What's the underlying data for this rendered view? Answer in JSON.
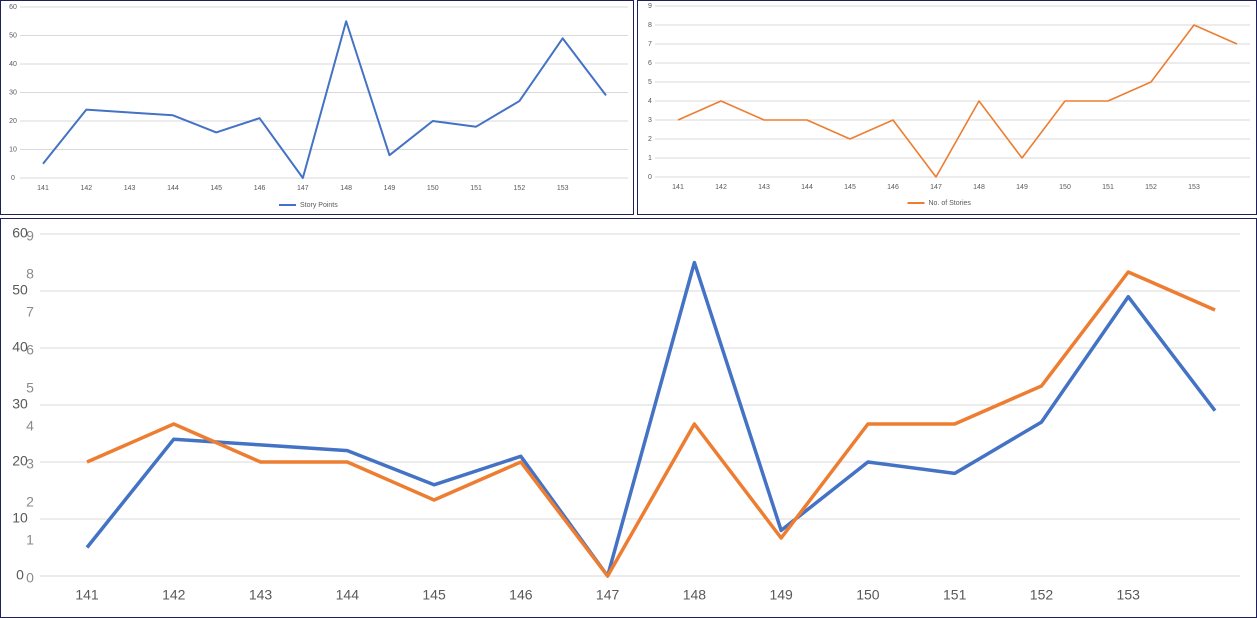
{
  "chart_data": [
    {
      "type": "line",
      "categories": [
        "141",
        "142",
        "143",
        "144",
        "145",
        "146",
        "147",
        "148",
        "149",
        "150",
        "151",
        "152",
        "153",
        null
      ],
      "series": [
        {
          "name": "Story Points",
          "color": "#4472c4",
          "values": [
            5,
            24,
            23,
            22,
            16,
            21,
            0,
            55,
            8,
            20,
            18,
            27,
            49,
            29
          ]
        }
      ],
      "ylim": [
        0,
        60
      ],
      "yticks": [
        0,
        10,
        20,
        30,
        40,
        50,
        60
      ],
      "grid": true,
      "legend": "bottom"
    },
    {
      "type": "line",
      "categories": [
        "141",
        "142",
        "143",
        "144",
        "145",
        "146",
        "147",
        "148",
        "149",
        "150",
        "151",
        "152",
        "153",
        null
      ],
      "series": [
        {
          "name": "No. of Stories",
          "color": "#ed7d31",
          "values": [
            3,
            4,
            3,
            3,
            2,
            3,
            0,
            4,
            1,
            4,
            4,
            5,
            8,
            7
          ]
        }
      ],
      "ylim": [
        0,
        9
      ],
      "yticks": [
        0,
        1,
        2,
        3,
        4,
        5,
        6,
        7,
        8,
        9
      ],
      "grid": true,
      "legend": "bottom"
    },
    {
      "type": "line",
      "categories": [
        "141",
        "142",
        "143",
        "144",
        "145",
        "146",
        "147",
        "148",
        "149",
        "150",
        "151",
        "152",
        "153",
        null
      ],
      "series": [
        {
          "color": "#4472c4",
          "values": [
            5,
            24,
            23,
            22,
            16,
            21,
            0,
            55,
            8,
            20,
            18,
            27,
            49,
            29
          ]
        },
        {
          "color": "#ed7d31",
          "axis": "y2",
          "values": [
            3,
            4,
            3,
            3,
            2,
            3,
            0,
            4,
            1,
            4,
            4,
            5,
            8,
            7
          ]
        }
      ],
      "ylim": [
        0,
        60
      ],
      "yticks": [
        0,
        10,
        20,
        30,
        40,
        50,
        60
      ],
      "y2lim": [
        0,
        9
      ],
      "y2ticks": [
        0,
        1,
        2,
        3,
        4,
        5,
        6,
        7,
        8,
        9
      ],
      "grid": true
    }
  ]
}
